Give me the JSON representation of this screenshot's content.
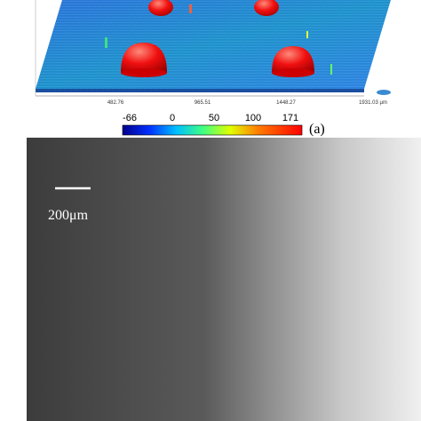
{
  "profile": {
    "axis_labels": [
      "482.76",
      "965.51",
      "1448.27",
      "1931.03 µm"
    ]
  },
  "colorbar": {
    "ticks": [
      "-66",
      "0",
      "50",
      "100",
      "171"
    ],
    "panel_label": "(a)"
  },
  "sem": {
    "scale_bar": "200μm"
  }
}
